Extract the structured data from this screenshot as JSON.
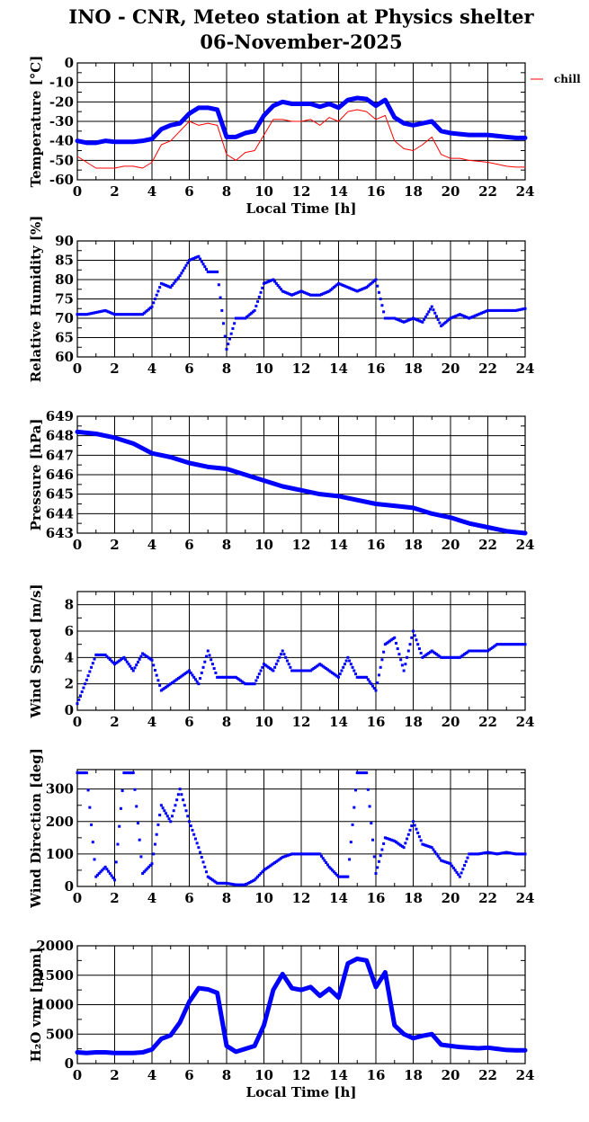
{
  "chart_data": {
    "title": "INO - CNR, Meteo station at Physics shelter",
    "subtitle": "06-November-2025",
    "panels": [
      {
        "type": "line",
        "ylabel": "Temperature [°C]",
        "xlabel": "Local Time [h]",
        "xlim": [
          0,
          24
        ],
        "xticks": [
          0,
          2,
          4,
          6,
          8,
          10,
          12,
          14,
          16,
          18,
          20,
          22,
          24
        ],
        "ylim": [
          -60,
          0
        ],
        "yticks": [
          -60,
          -50,
          -40,
          -30,
          -20,
          -10,
          0
        ],
        "grid": true,
        "legend": {
          "position": "right",
          "entries": [
            "chill"
          ]
        },
        "series": [
          {
            "name": "temperature",
            "color": "#0000ff",
            "style": "thick",
            "x_step": 0.5,
            "values": [
              -40,
              -41,
              -41,
              -40,
              -40.5,
              -40.5,
              -40.5,
              -40,
              -39,
              -34,
              -32,
              -31,
              -26,
              -23,
              -23,
              -24,
              -38,
              -38,
              -36,
              -35,
              -27,
              -22,
              -20,
              -21,
              -21,
              -21,
              -22.5,
              -21,
              -23,
              -19,
              -18,
              -18.5,
              -22,
              -19,
              -28,
              -31,
              -32,
              -31,
              -30,
              -35,
              -36,
              -36.5,
              -37,
              -37,
              -37,
              -37.5,
              -38,
              -38.5,
              -38.5
            ]
          },
          {
            "name": "chill",
            "color": "#ff0000",
            "style": "thin",
            "x_step": 0.5,
            "values": [
              -48,
              -51,
              -54,
              -54,
              -54,
              -53,
              -53,
              -54,
              -51,
              -42,
              -40,
              -35,
              -30,
              -32,
              -31,
              -32,
              -47,
              -50,
              -46,
              -45,
              -37,
              -29,
              -29,
              -30,
              -30,
              -29,
              -32,
              -28,
              -30,
              -25,
              -24,
              -25,
              -29,
              -27,
              -40,
              -44,
              -45,
              -42,
              -38,
              -47,
              -49,
              -49,
              -50,
              -50.5,
              -51,
              -52,
              -53,
              -53.5,
              -53.5
            ]
          }
        ]
      },
      {
        "type": "scatter",
        "ylabel": "Relative Humidity [%]",
        "xlim": [
          0,
          24
        ],
        "xticks": [
          0,
          2,
          4,
          6,
          8,
          10,
          12,
          14,
          16,
          18,
          20,
          22,
          24
        ],
        "ylim": [
          60,
          90
        ],
        "yticks": [
          60,
          65,
          70,
          75,
          80,
          85,
          90
        ],
        "grid": true,
        "series": [
          {
            "name": "relative-humidity",
            "color": "#0000ff",
            "style": "dots",
            "x_step": 0.5,
            "values": [
              71,
              71,
              71.5,
              72,
              71,
              71,
              71,
              71,
              73,
              79,
              78,
              81,
              85,
              86,
              82,
              82,
              62,
              70,
              70,
              72,
              79,
              80,
              77,
              76,
              77,
              76,
              76,
              77,
              79,
              78,
              77,
              78,
              80,
              70,
              70,
              69,
              70,
              69,
              73,
              68,
              70,
              71,
              70,
              71,
              72,
              72,
              72,
              72,
              72.5
            ]
          }
        ]
      },
      {
        "type": "line",
        "ylabel": "Pressure [hPa]",
        "xlim": [
          0,
          24
        ],
        "xticks": [
          0,
          2,
          4,
          6,
          8,
          10,
          12,
          14,
          16,
          18,
          20,
          22,
          24
        ],
        "ylim": [
          643,
          649
        ],
        "yticks": [
          643,
          644,
          645,
          646,
          647,
          648,
          649
        ],
        "grid": true,
        "series": [
          {
            "name": "pressure",
            "color": "#0000ff",
            "style": "thick",
            "x_step": 1,
            "values": [
              648.2,
              648.1,
              647.9,
              647.6,
              647.1,
              646.9,
              646.6,
              646.4,
              646.3,
              646.0,
              645.7,
              645.4,
              645.2,
              645.0,
              644.9,
              644.7,
              644.5,
              644.4,
              644.3,
              644.0,
              643.8,
              643.5,
              643.3,
              643.1,
              643.0
            ]
          }
        ]
      },
      {
        "type": "scatter",
        "ylabel": "Wind Speed [m/s]",
        "xlim": [
          0,
          24
        ],
        "xticks": [
          0,
          2,
          4,
          6,
          8,
          10,
          12,
          14,
          16,
          18,
          20,
          22,
          24
        ],
        "ylim": [
          0,
          9
        ],
        "yticks": [
          0,
          2,
          4,
          6,
          8
        ],
        "grid": true,
        "series": [
          {
            "name": "wind-speed",
            "color": "#0000ff",
            "style": "dots",
            "x_step": 0.5,
            "values": [
              0.5,
              2.3,
              4.2,
              4.2,
              3.5,
              4,
              3,
              4.3,
              3.8,
              1.5,
              2,
              2.5,
              3,
              2,
              4.5,
              2.5,
              2.5,
              2.5,
              2,
              2,
              3.5,
              3,
              4.5,
              3,
              3,
              3,
              3.5,
              3,
              2.5,
              4,
              2.5,
              2.5,
              1.5,
              5,
              5.5,
              3,
              6,
              4,
              4.5,
              4,
              4,
              4,
              4.5,
              4.5,
              4.5,
              5,
              5,
              5,
              5
            ]
          }
        ]
      },
      {
        "type": "scatter",
        "ylabel": "Wind Direction [deg]",
        "xlim": [
          0,
          24
        ],
        "xticks": [
          0,
          2,
          4,
          6,
          8,
          10,
          12,
          14,
          16,
          18,
          20,
          22,
          24
        ],
        "ylim": [
          0,
          360
        ],
        "yticks": [
          0,
          100,
          200,
          300
        ],
        "grid": true,
        "series": [
          {
            "name": "wind-direction",
            "color": "#0000ff",
            "style": "dots",
            "x_step": 0.5,
            "values": [
              350,
              350,
              30,
              60,
              20,
              350,
              350,
              40,
              70,
              250,
              200,
              300,
              200,
              120,
              30,
              10,
              10,
              5,
              5,
              20,
              50,
              70,
              90,
              100,
              100,
              100,
              100,
              60,
              30,
              30,
              350,
              350,
              40,
              150,
              140,
              120,
              200,
              130,
              120,
              80,
              70,
              30,
              100,
              100,
              105,
              100,
              105,
              100,
              100
            ]
          }
        ]
      },
      {
        "type": "line",
        "ylabel": "H₂O vmr [ppm]",
        "xlabel": "Local Time [h]",
        "xlim": [
          0,
          24
        ],
        "xticks": [
          0,
          2,
          4,
          6,
          8,
          10,
          12,
          14,
          16,
          18,
          20,
          22,
          24
        ],
        "ylim": [
          0,
          2000
        ],
        "yticks": [
          0,
          500,
          1000,
          1500,
          2000
        ],
        "grid": true,
        "series": [
          {
            "name": "h2o-vmr",
            "color": "#0000ff",
            "style": "thick",
            "x_step": 0.5,
            "values": [
              190,
              180,
              190,
              190,
              180,
              180,
              180,
              190,
              240,
              420,
              480,
              700,
              1050,
              1280,
              1260,
              1200,
              300,
              200,
              250,
              300,
              650,
              1250,
              1520,
              1280,
              1250,
              1300,
              1150,
              1270,
              1120,
              1700,
              1780,
              1750,
              1300,
              1550,
              650,
              500,
              430,
              470,
              500,
              320,
              300,
              280,
              270,
              260,
              270,
              250,
              230,
              225,
              225
            ]
          }
        ]
      }
    ]
  }
}
